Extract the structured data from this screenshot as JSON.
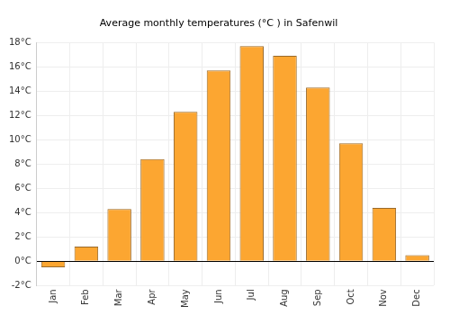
{
  "chart_data": {
    "type": "bar",
    "title": "Average monthly temperatures (°C ) in Safenwil",
    "categories": [
      "Jan",
      "Feb",
      "Mar",
      "Apr",
      "May",
      "Jun",
      "Jul",
      "Aug",
      "Sep",
      "Oct",
      "Nov",
      "Dec"
    ],
    "values": [
      -0.5,
      1.2,
      4.3,
      8.4,
      12.3,
      15.7,
      17.7,
      16.9,
      14.3,
      9.7,
      4.4,
      0.5
    ],
    "color": "#fca631",
    "ylim": [
      -2,
      18
    ],
    "yticks": [
      {
        "value": -2,
        "label": "-2°C"
      },
      {
        "value": 0,
        "label": "0°C"
      },
      {
        "value": 2,
        "label": "2°C"
      },
      {
        "value": 4,
        "label": "4°C"
      },
      {
        "value": 6,
        "label": "6°C"
      },
      {
        "value": 8,
        "label": "8°C"
      },
      {
        "value": 10,
        "label": "10°C"
      },
      {
        "value": 12,
        "label": "12°C"
      },
      {
        "value": 14,
        "label": "14°C"
      },
      {
        "value": 16,
        "label": "16°C"
      },
      {
        "value": 18,
        "label": "18°C"
      }
    ],
    "grid": true
  }
}
